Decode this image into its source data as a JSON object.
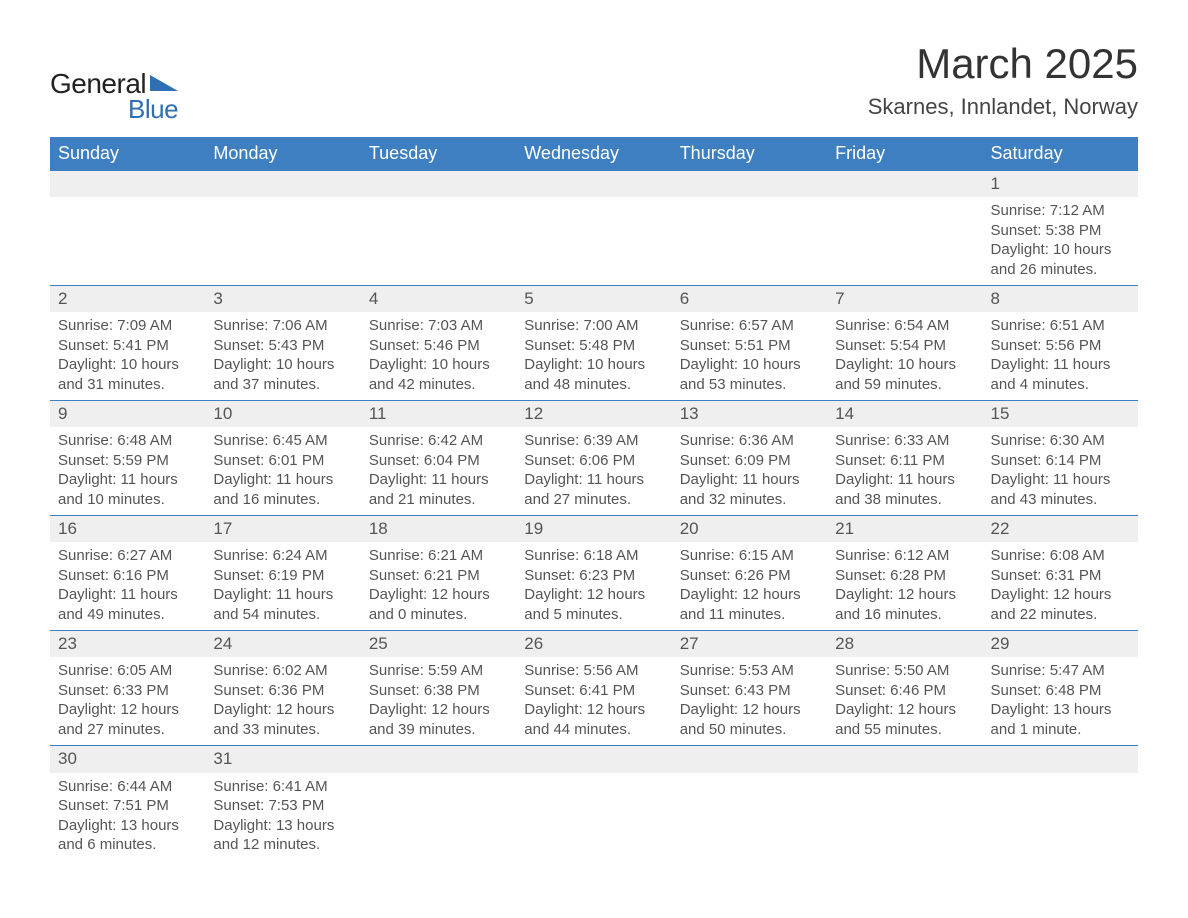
{
  "logo": {
    "text1": "General",
    "text2": "Blue",
    "triangle_color": "#2f6fb3"
  },
  "title": "March 2025",
  "location": "Skarnes, Innlandet, Norway",
  "colors": {
    "header_bg": "#3d7fc0",
    "header_text": "#ffffff",
    "daynum_bg": "#efefef",
    "text": "#555555",
    "row_border": "#3d7fc0"
  },
  "typography": {
    "title_fontsize": 42,
    "location_fontsize": 22,
    "weekday_fontsize": 18,
    "daynum_fontsize": 17,
    "detail_fontsize": 15
  },
  "layout": {
    "columns": 7,
    "weeks": 6
  },
  "weekdays": [
    "Sunday",
    "Monday",
    "Tuesday",
    "Wednesday",
    "Thursday",
    "Friday",
    "Saturday"
  ],
  "weeks": [
    [
      null,
      null,
      null,
      null,
      null,
      null,
      {
        "n": "1",
        "sr": "Sunrise: 7:12 AM",
        "ss": "Sunset: 5:38 PM",
        "d1": "Daylight: 10 hours",
        "d2": "and 26 minutes."
      }
    ],
    [
      {
        "n": "2",
        "sr": "Sunrise: 7:09 AM",
        "ss": "Sunset: 5:41 PM",
        "d1": "Daylight: 10 hours",
        "d2": "and 31 minutes."
      },
      {
        "n": "3",
        "sr": "Sunrise: 7:06 AM",
        "ss": "Sunset: 5:43 PM",
        "d1": "Daylight: 10 hours",
        "d2": "and 37 minutes."
      },
      {
        "n": "4",
        "sr": "Sunrise: 7:03 AM",
        "ss": "Sunset: 5:46 PM",
        "d1": "Daylight: 10 hours",
        "d2": "and 42 minutes."
      },
      {
        "n": "5",
        "sr": "Sunrise: 7:00 AM",
        "ss": "Sunset: 5:48 PM",
        "d1": "Daylight: 10 hours",
        "d2": "and 48 minutes."
      },
      {
        "n": "6",
        "sr": "Sunrise: 6:57 AM",
        "ss": "Sunset: 5:51 PM",
        "d1": "Daylight: 10 hours",
        "d2": "and 53 minutes."
      },
      {
        "n": "7",
        "sr": "Sunrise: 6:54 AM",
        "ss": "Sunset: 5:54 PM",
        "d1": "Daylight: 10 hours",
        "d2": "and 59 minutes."
      },
      {
        "n": "8",
        "sr": "Sunrise: 6:51 AM",
        "ss": "Sunset: 5:56 PM",
        "d1": "Daylight: 11 hours",
        "d2": "and 4 minutes."
      }
    ],
    [
      {
        "n": "9",
        "sr": "Sunrise: 6:48 AM",
        "ss": "Sunset: 5:59 PM",
        "d1": "Daylight: 11 hours",
        "d2": "and 10 minutes."
      },
      {
        "n": "10",
        "sr": "Sunrise: 6:45 AM",
        "ss": "Sunset: 6:01 PM",
        "d1": "Daylight: 11 hours",
        "d2": "and 16 minutes."
      },
      {
        "n": "11",
        "sr": "Sunrise: 6:42 AM",
        "ss": "Sunset: 6:04 PM",
        "d1": "Daylight: 11 hours",
        "d2": "and 21 minutes."
      },
      {
        "n": "12",
        "sr": "Sunrise: 6:39 AM",
        "ss": "Sunset: 6:06 PM",
        "d1": "Daylight: 11 hours",
        "d2": "and 27 minutes."
      },
      {
        "n": "13",
        "sr": "Sunrise: 6:36 AM",
        "ss": "Sunset: 6:09 PM",
        "d1": "Daylight: 11 hours",
        "d2": "and 32 minutes."
      },
      {
        "n": "14",
        "sr": "Sunrise: 6:33 AM",
        "ss": "Sunset: 6:11 PM",
        "d1": "Daylight: 11 hours",
        "d2": "and 38 minutes."
      },
      {
        "n": "15",
        "sr": "Sunrise: 6:30 AM",
        "ss": "Sunset: 6:14 PM",
        "d1": "Daylight: 11 hours",
        "d2": "and 43 minutes."
      }
    ],
    [
      {
        "n": "16",
        "sr": "Sunrise: 6:27 AM",
        "ss": "Sunset: 6:16 PM",
        "d1": "Daylight: 11 hours",
        "d2": "and 49 minutes."
      },
      {
        "n": "17",
        "sr": "Sunrise: 6:24 AM",
        "ss": "Sunset: 6:19 PM",
        "d1": "Daylight: 11 hours",
        "d2": "and 54 minutes."
      },
      {
        "n": "18",
        "sr": "Sunrise: 6:21 AM",
        "ss": "Sunset: 6:21 PM",
        "d1": "Daylight: 12 hours",
        "d2": "and 0 minutes."
      },
      {
        "n": "19",
        "sr": "Sunrise: 6:18 AM",
        "ss": "Sunset: 6:23 PM",
        "d1": "Daylight: 12 hours",
        "d2": "and 5 minutes."
      },
      {
        "n": "20",
        "sr": "Sunrise: 6:15 AM",
        "ss": "Sunset: 6:26 PM",
        "d1": "Daylight: 12 hours",
        "d2": "and 11 minutes."
      },
      {
        "n": "21",
        "sr": "Sunrise: 6:12 AM",
        "ss": "Sunset: 6:28 PM",
        "d1": "Daylight: 12 hours",
        "d2": "and 16 minutes."
      },
      {
        "n": "22",
        "sr": "Sunrise: 6:08 AM",
        "ss": "Sunset: 6:31 PM",
        "d1": "Daylight: 12 hours",
        "d2": "and 22 minutes."
      }
    ],
    [
      {
        "n": "23",
        "sr": "Sunrise: 6:05 AM",
        "ss": "Sunset: 6:33 PM",
        "d1": "Daylight: 12 hours",
        "d2": "and 27 minutes."
      },
      {
        "n": "24",
        "sr": "Sunrise: 6:02 AM",
        "ss": "Sunset: 6:36 PM",
        "d1": "Daylight: 12 hours",
        "d2": "and 33 minutes."
      },
      {
        "n": "25",
        "sr": "Sunrise: 5:59 AM",
        "ss": "Sunset: 6:38 PM",
        "d1": "Daylight: 12 hours",
        "d2": "and 39 minutes."
      },
      {
        "n": "26",
        "sr": "Sunrise: 5:56 AM",
        "ss": "Sunset: 6:41 PM",
        "d1": "Daylight: 12 hours",
        "d2": "and 44 minutes."
      },
      {
        "n": "27",
        "sr": "Sunrise: 5:53 AM",
        "ss": "Sunset: 6:43 PM",
        "d1": "Daylight: 12 hours",
        "d2": "and 50 minutes."
      },
      {
        "n": "28",
        "sr": "Sunrise: 5:50 AM",
        "ss": "Sunset: 6:46 PM",
        "d1": "Daylight: 12 hours",
        "d2": "and 55 minutes."
      },
      {
        "n": "29",
        "sr": "Sunrise: 5:47 AM",
        "ss": "Sunset: 6:48 PM",
        "d1": "Daylight: 13 hours",
        "d2": "and 1 minute."
      }
    ],
    [
      {
        "n": "30",
        "sr": "Sunrise: 6:44 AM",
        "ss": "Sunset: 7:51 PM",
        "d1": "Daylight: 13 hours",
        "d2": "and 6 minutes."
      },
      {
        "n": "31",
        "sr": "Sunrise: 6:41 AM",
        "ss": "Sunset: 7:53 PM",
        "d1": "Daylight: 13 hours",
        "d2": "and 12 minutes."
      },
      null,
      null,
      null,
      null,
      null
    ]
  ]
}
